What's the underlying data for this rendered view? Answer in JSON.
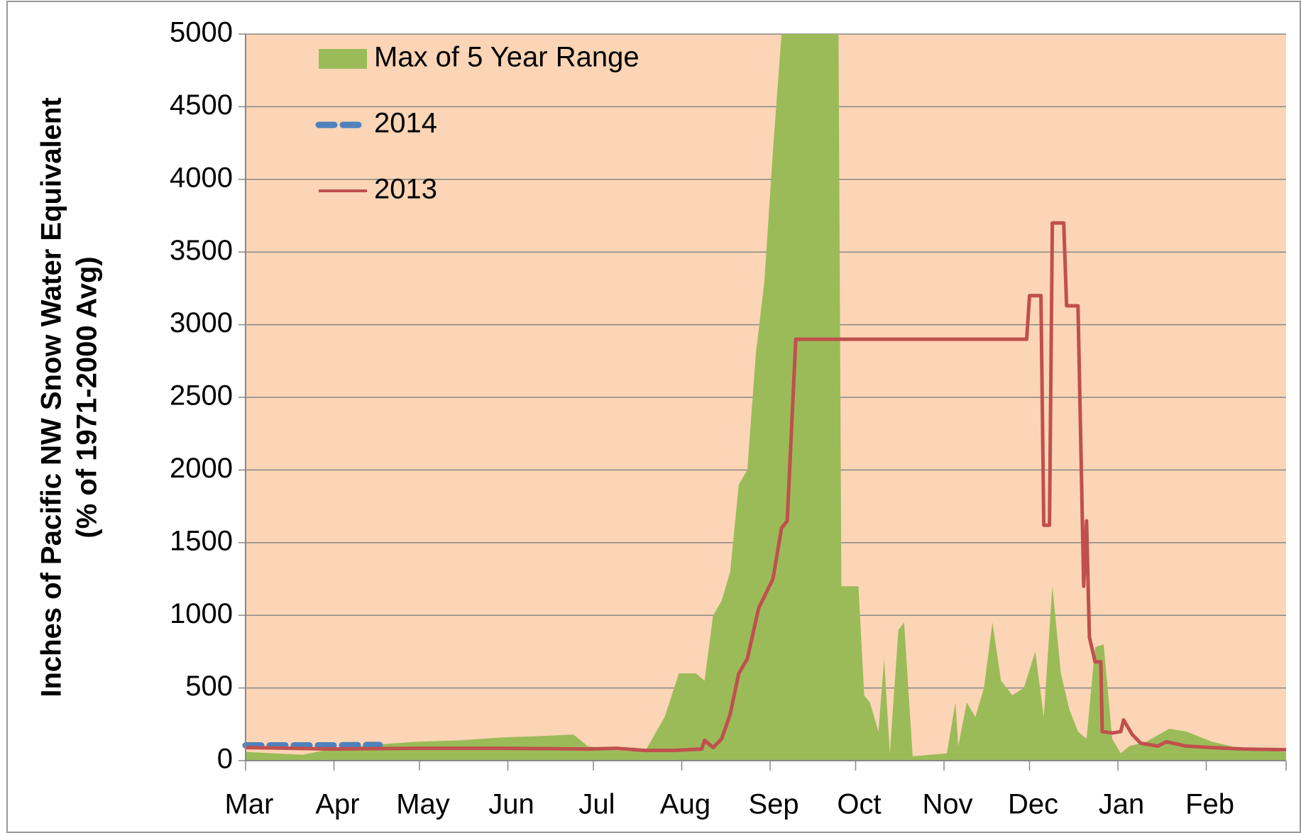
{
  "chart_data": {
    "type": "area-line",
    "ylabel": [
      "Inches of Pacific NW Snow Water Equivalent",
      "(% of 1971-2000 Avg)"
    ],
    "xlim": [
      0,
      365
    ],
    "xticks": [
      {
        "value": 0,
        "label": "Mar"
      },
      {
        "value": 31,
        "label": "Apr"
      },
      {
        "value": 61,
        "label": "May"
      },
      {
        "value": 92,
        "label": "Jun"
      },
      {
        "value": 122,
        "label": "Jul"
      },
      {
        "value": 153,
        "label": "Aug"
      },
      {
        "value": 184,
        "label": "Sep"
      },
      {
        "value": 214,
        "label": "Oct"
      },
      {
        "value": 245,
        "label": "Nov"
      },
      {
        "value": 275,
        "label": "Dec"
      },
      {
        "value": 306,
        "label": "Jan"
      },
      {
        "value": 337,
        "label": "Feb"
      },
      365
    ],
    "ylim": [
      0,
      5000
    ],
    "yticks": [
      0,
      500,
      1000,
      1500,
      2000,
      2500,
      3000,
      3500,
      4000,
      4500,
      5000
    ],
    "grid": true,
    "legend": "top-left",
    "series": [
      {
        "name": "Max of 5 Year Range",
        "kind": "area",
        "color": "#9bbb59",
        "x": [
          0,
          10,
          20,
          30,
          45,
          60,
          75,
          90,
          105,
          115,
          120,
          130,
          140,
          147,
          152,
          158,
          161,
          164,
          167,
          170,
          173,
          176,
          179,
          182,
          185,
          188,
          208,
          209,
          215,
          217,
          219,
          222,
          224,
          226,
          229,
          231,
          234,
          246,
          249,
          250,
          253,
          256,
          259,
          262,
          265,
          269,
          273,
          277,
          280,
          283,
          286,
          289,
          292,
          295,
          298,
          301,
          304,
          307,
          310,
          316,
          324,
          330,
          339,
          350,
          365
        ],
        "values": [
          60,
          50,
          40,
          80,
          110,
          130,
          140,
          160,
          170,
          180,
          100,
          70,
          60,
          300,
          600,
          600,
          550,
          1000,
          1100,
          1300,
          1900,
          2000,
          2800,
          3300,
          4200,
          5000,
          5000,
          1200,
          1200,
          450,
          400,
          200,
          700,
          50,
          900,
          950,
          30,
          50,
          400,
          100,
          400,
          300,
          500,
          950,
          550,
          450,
          500,
          750,
          300,
          1200,
          600,
          350,
          200,
          150,
          780,
          800,
          150,
          50,
          100,
          130,
          220,
          200,
          130,
          80,
          60
        ]
      },
      {
        "name": "2014",
        "kind": "dashed",
        "color": "#4f81bd",
        "x": [
          0,
          15,
          30,
          47
        ],
        "values": [
          105,
          105,
          105,
          108
        ]
      },
      {
        "name": "2013",
        "kind": "line",
        "color": "#c0504d",
        "x": [
          0,
          30,
          60,
          90,
          120,
          130,
          140,
          150,
          160,
          161,
          164,
          167,
          170,
          173,
          176,
          180,
          185,
          188,
          190,
          193,
          274,
          275,
          279,
          280,
          282,
          283,
          287,
          288,
          292,
          294,
          295,
          296,
          298,
          300,
          300.5,
          304,
          307,
          308,
          311,
          314,
          320,
          323,
          330,
          339,
          350,
          365
        ],
        "values": [
          90,
          80,
          85,
          85,
          80,
          85,
          70,
          70,
          80,
          140,
          90,
          150,
          320,
          600,
          700,
          1050,
          1250,
          1600,
          1650,
          2900,
          2900,
          3200,
          3200,
          1620,
          1620,
          3700,
          3700,
          3130,
          3130,
          1200,
          1650,
          850,
          680,
          680,
          200,
          190,
          200,
          280,
          180,
          120,
          100,
          130,
          100,
          90,
          80,
          75
        ]
      }
    ]
  }
}
